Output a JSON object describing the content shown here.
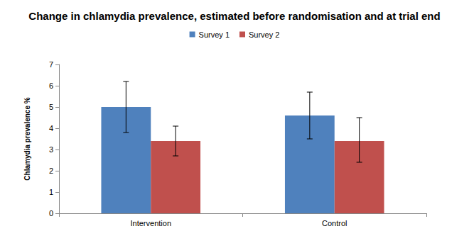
{
  "chart_data": {
    "type": "bar",
    "title": "Change in chlamydia prevalence, estimated before randomisation and at trial end",
    "y_label": "Chlamydia prevalence %",
    "categories": [
      "Intervention",
      "Control"
    ],
    "series": [
      {
        "name": "Survey 1",
        "color": "#4F81BD",
        "values": [
          5.0,
          4.6
        ],
        "error_low": [
          3.8,
          3.5
        ],
        "error_high": [
          6.2,
          5.7
        ]
      },
      {
        "name": "Survey 2",
        "color": "#C0504D",
        "values": [
          3.4,
          3.4
        ],
        "error_low": [
          2.7,
          2.4
        ],
        "error_high": [
          4.1,
          4.5
        ]
      }
    ],
    "ylim": [
      0,
      7
    ],
    "yticks": [
      0,
      1,
      2,
      3,
      4,
      5,
      6,
      7
    ],
    "grid": false,
    "legend": "top"
  }
}
